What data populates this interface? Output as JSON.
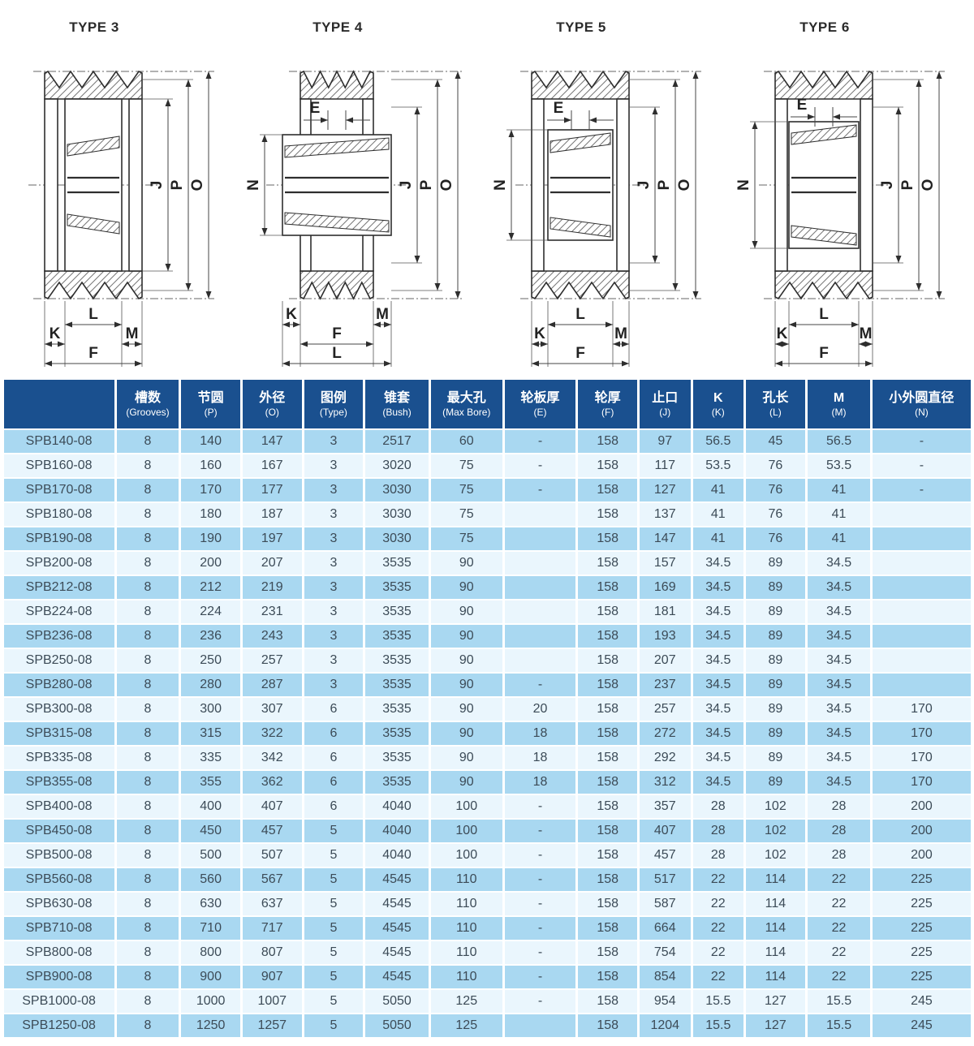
{
  "colors": {
    "header_bg": "#1a508f",
    "row_dark": "#a9d8f1",
    "row_light": "#eaf6fd",
    "cell_text": "#3c4b57",
    "header_text": "#ffffff",
    "drawing_line": "#2e2e2e"
  },
  "diagrams": [
    {
      "title": "TYPE 3",
      "dims": {
        "J": "J",
        "P": "P",
        "O": "O",
        "L": "L",
        "K": "K",
        "M": "M",
        "F": "F"
      }
    },
    {
      "title": "TYPE 4",
      "dims": {
        "E": "E",
        "N": "N",
        "J": "J",
        "P": "P",
        "O": "O",
        "K": "K",
        "M": "M",
        "F": "F",
        "L": "L"
      }
    },
    {
      "title": "TYPE 5",
      "dims": {
        "E": "E",
        "N": "N",
        "J": "J",
        "P": "P",
        "O": "O",
        "L": "L",
        "K": "K",
        "M": "M",
        "F": "F"
      }
    },
    {
      "title": "TYPE 6",
      "dims": {
        "E": "E",
        "N": "N",
        "J": "J",
        "P": "P",
        "O": "O",
        "L": "L",
        "K": "K",
        "M": "M",
        "F": "F"
      }
    }
  ],
  "table": {
    "header": [
      {
        "zh": "",
        "en": ""
      },
      {
        "zh": "槽数",
        "en": "(Grooves)"
      },
      {
        "zh": "节圆",
        "en": "(P)"
      },
      {
        "zh": "外径",
        "en": "(O)"
      },
      {
        "zh": "图例",
        "en": "(Type)"
      },
      {
        "zh": "锥套",
        "en": "(Bush)"
      },
      {
        "zh": "最大孔",
        "en": "(Max Bore)"
      },
      {
        "zh": "轮板厚",
        "en": "(E)"
      },
      {
        "zh": "轮厚",
        "en": "(F)"
      },
      {
        "zh": "止口",
        "en": "(J)"
      },
      {
        "zh": "K",
        "en": "(K)"
      },
      {
        "zh": "孔长",
        "en": "(L)"
      },
      {
        "zh": "M",
        "en": "(M)"
      },
      {
        "zh": "小外圆直径",
        "en": "(N)"
      }
    ],
    "rows": [
      [
        "SPB140-08",
        "8",
        "140",
        "147",
        "3",
        "2517",
        "60",
        "-",
        "158",
        "97",
        "56.5",
        "45",
        "56.5",
        "-"
      ],
      [
        "SPB160-08",
        "8",
        "160",
        "167",
        "3",
        "3020",
        "75",
        "-",
        "158",
        "117",
        "53.5",
        "76",
        "53.5",
        "-"
      ],
      [
        "SPB170-08",
        "8",
        "170",
        "177",
        "3",
        "3030",
        "75",
        "-",
        "158",
        "127",
        "41",
        "76",
        "41",
        "-"
      ],
      [
        "SPB180-08",
        "8",
        "180",
        "187",
        "3",
        "3030",
        "75",
        "",
        "158",
        "137",
        "41",
        "76",
        "41",
        ""
      ],
      [
        "SPB190-08",
        "8",
        "190",
        "197",
        "3",
        "3030",
        "75",
        "",
        "158",
        "147",
        "41",
        "76",
        "41",
        ""
      ],
      [
        "SPB200-08",
        "8",
        "200",
        "207",
        "3",
        "3535",
        "90",
        "",
        "158",
        "157",
        "34.5",
        "89",
        "34.5",
        ""
      ],
      [
        "SPB212-08",
        "8",
        "212",
        "219",
        "3",
        "3535",
        "90",
        "",
        "158",
        "169",
        "34.5",
        "89",
        "34.5",
        ""
      ],
      [
        "SPB224-08",
        "8",
        "224",
        "231",
        "3",
        "3535",
        "90",
        "",
        "158",
        "181",
        "34.5",
        "89",
        "34.5",
        ""
      ],
      [
        "SPB236-08",
        "8",
        "236",
        "243",
        "3",
        "3535",
        "90",
        "",
        "158",
        "193",
        "34.5",
        "89",
        "34.5",
        ""
      ],
      [
        "SPB250-08",
        "8",
        "250",
        "257",
        "3",
        "3535",
        "90",
        "",
        "158",
        "207",
        "34.5",
        "89",
        "34.5",
        ""
      ],
      [
        "SPB280-08",
        "8",
        "280",
        "287",
        "3",
        "3535",
        "90",
        "-",
        "158",
        "237",
        "34.5",
        "89",
        "34.5",
        ""
      ],
      [
        "SPB300-08",
        "8",
        "300",
        "307",
        "6",
        "3535",
        "90",
        "20",
        "158",
        "257",
        "34.5",
        "89",
        "34.5",
        "170"
      ],
      [
        "SPB315-08",
        "8",
        "315",
        "322",
        "6",
        "3535",
        "90",
        "18",
        "158",
        "272",
        "34.5",
        "89",
        "34.5",
        "170"
      ],
      [
        "SPB335-08",
        "8",
        "335",
        "342",
        "6",
        "3535",
        "90",
        "18",
        "158",
        "292",
        "34.5",
        "89",
        "34.5",
        "170"
      ],
      [
        "SPB355-08",
        "8",
        "355",
        "362",
        "6",
        "3535",
        "90",
        "18",
        "158",
        "312",
        "34.5",
        "89",
        "34.5",
        "170"
      ],
      [
        "SPB400-08",
        "8",
        "400",
        "407",
        "6",
        "4040",
        "100",
        "-",
        "158",
        "357",
        "28",
        "102",
        "28",
        "200"
      ],
      [
        "SPB450-08",
        "8",
        "450",
        "457",
        "5",
        "4040",
        "100",
        "-",
        "158",
        "407",
        "28",
        "102",
        "28",
        "200"
      ],
      [
        "SPB500-08",
        "8",
        "500",
        "507",
        "5",
        "4040",
        "100",
        "-",
        "158",
        "457",
        "28",
        "102",
        "28",
        "200"
      ],
      [
        "SPB560-08",
        "8",
        "560",
        "567",
        "5",
        "4545",
        "110",
        "-",
        "158",
        "517",
        "22",
        "114",
        "22",
        "225"
      ],
      [
        "SPB630-08",
        "8",
        "630",
        "637",
        "5",
        "4545",
        "110",
        "-",
        "158",
        "587",
        "22",
        "114",
        "22",
        "225"
      ],
      [
        "SPB710-08",
        "8",
        "710",
        "717",
        "5",
        "4545",
        "110",
        "-",
        "158",
        "664",
        "22",
        "114",
        "22",
        "225"
      ],
      [
        "SPB800-08",
        "8",
        "800",
        "807",
        "5",
        "4545",
        "110",
        "-",
        "158",
        "754",
        "22",
        "114",
        "22",
        "225"
      ],
      [
        "SPB900-08",
        "8",
        "900",
        "907",
        "5",
        "4545",
        "110",
        "-",
        "158",
        "854",
        "22",
        "114",
        "22",
        "225"
      ],
      [
        "SPB1000-08",
        "8",
        "1000",
        "1007",
        "5",
        "5050",
        "125",
        "-",
        "158",
        "954",
        "15.5",
        "127",
        "15.5",
        "245"
      ],
      [
        "SPB1250-08",
        "8",
        "1250",
        "1257",
        "5",
        "5050",
        "125",
        "",
        "158",
        "1204",
        "15.5",
        "127",
        "15.5",
        "245"
      ]
    ]
  }
}
